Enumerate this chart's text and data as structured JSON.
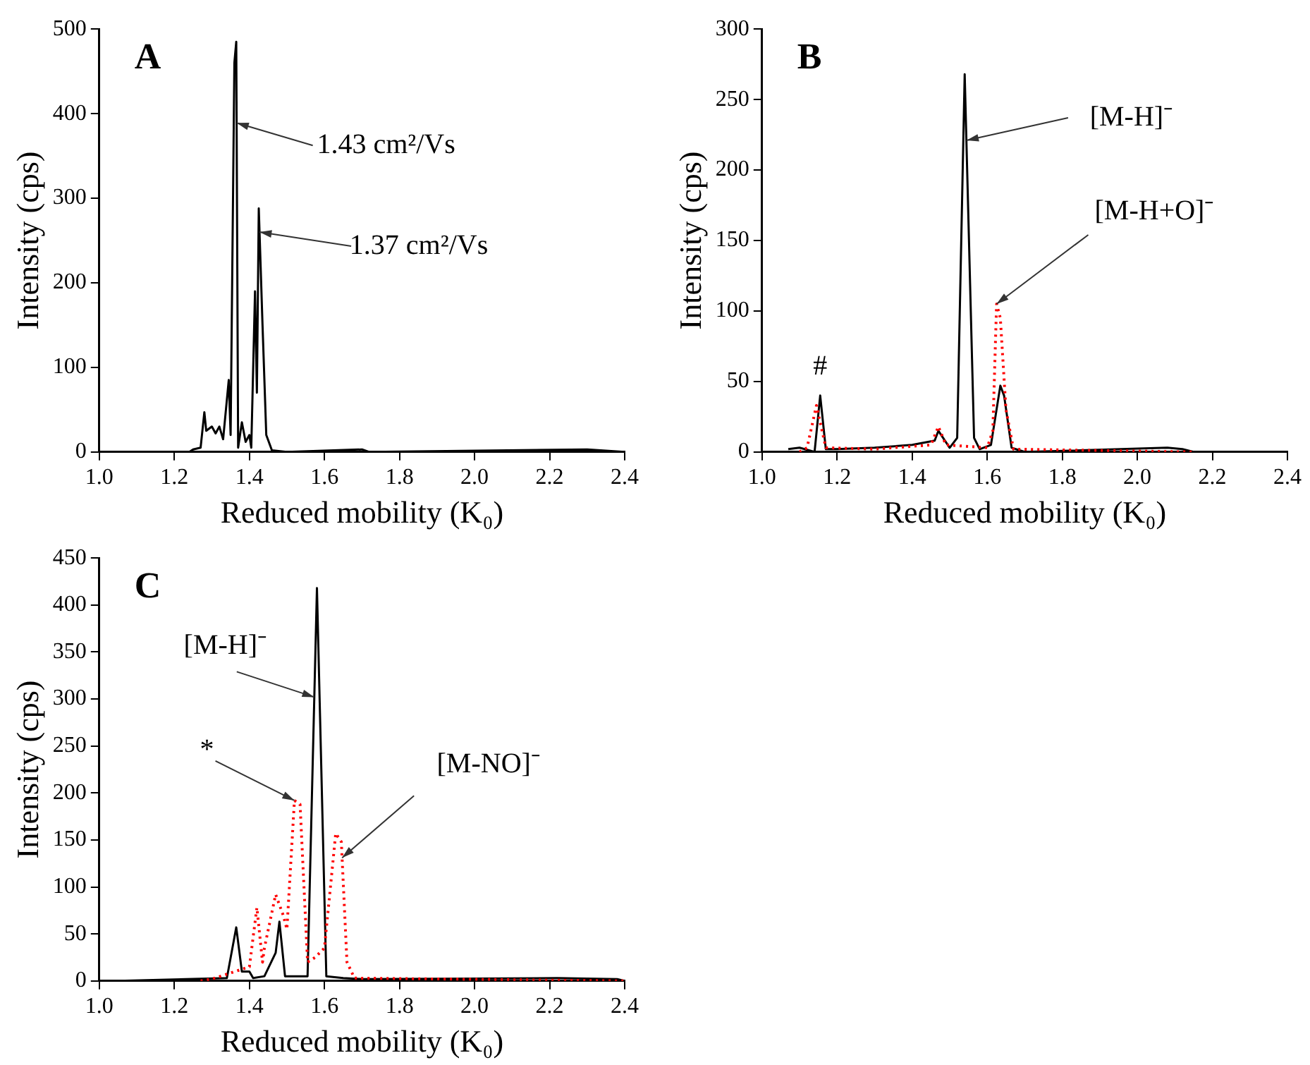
{
  "chart_data": [
    {
      "type": "line",
      "title": "A",
      "xlabel": "Reduced mobility (K₀)",
      "ylabel": "Intensity (cps)",
      "xlim": [
        1.0,
        2.4
      ],
      "xticks": [
        {
          "value": 1.0,
          "label": "1.0"
        },
        {
          "value": 1.2,
          "label": "1.2"
        },
        {
          "value": 1.4,
          "label": "1.4"
        },
        {
          "value": 1.6,
          "label": "1.6"
        },
        {
          "value": 1.8,
          "label": "1.8"
        },
        {
          "value": 2.0,
          "label": "2.0"
        },
        {
          "value": 2.2,
          "label": "2.2"
        },
        {
          "value": 2.4,
          "label": "2.4"
        }
      ],
      "ylim": [
        0,
        500
      ],
      "yticks": [
        0,
        100,
        200,
        300,
        400,
        500
      ],
      "grid": false,
      "legend": false,
      "marker": "none",
      "series": [
        {
          "color": "#000000",
          "line_style": "solid",
          "x": [
            1.0,
            1.24,
            1.25,
            1.27,
            1.28,
            1.285,
            1.3,
            1.31,
            1.32,
            1.33,
            1.345,
            1.35,
            1.36,
            1.365,
            1.37,
            1.38,
            1.39,
            1.4,
            1.405,
            1.415,
            1.42,
            1.425,
            1.435,
            1.445,
            1.46,
            1.5,
            1.7,
            1.72,
            2.3,
            2.4
          ],
          "values": [
            0,
            0,
            3,
            5,
            47,
            25,
            30,
            22,
            30,
            15,
            85,
            20,
            460,
            485,
            5,
            35,
            12,
            20,
            5,
            190,
            70,
            288,
            150,
            20,
            2,
            0,
            3,
            0,
            3,
            0
          ]
        }
      ],
      "annotations": [
        {
          "text": "1.43 cm²/Vs",
          "x": 1.366,
          "y": 389
        },
        {
          "text": "1.37 cm²/Vs",
          "x": 1.427,
          "y": 260
        }
      ]
    },
    {
      "type": "line",
      "title": "B",
      "xlabel": "Reduced mobility (K₀)",
      "ylabel": "Intensity (cps)",
      "xlim": [
        1.0,
        2.4
      ],
      "xticks": [
        {
          "value": 1.0,
          "label": "1.0"
        },
        {
          "value": 1.2,
          "label": "1.2"
        },
        {
          "value": 1.4,
          "label": "1.4"
        },
        {
          "value": 1.6,
          "label": "1.6"
        },
        {
          "value": 1.8,
          "label": "1.8"
        },
        {
          "value": 2.0,
          "label": "2.0"
        },
        {
          "value": 2.2,
          "label": "2.2"
        },
        {
          "value": 2.4,
          "label": "2.4"
        }
      ],
      "ylim": [
        0,
        300
      ],
      "yticks": [
        0,
        50,
        100,
        150,
        200,
        250,
        300
      ],
      "grid": false,
      "legend": false,
      "marker": "none",
      "series": [
        {
          "color": "#ff0000",
          "line_style": "dotted",
          "x": [
            1.1,
            1.12,
            1.145,
            1.16,
            1.17,
            1.3,
            1.45,
            1.47,
            1.49,
            1.6,
            1.615,
            1.625,
            1.635,
            1.65,
            1.67,
            2.15
          ],
          "values": [
            0,
            3,
            33,
            15,
            3,
            2,
            5,
            18,
            5,
            3,
            15,
            105,
            95,
            30,
            2,
            0
          ]
        },
        {
          "color": "#000000",
          "line_style": "solid",
          "x": [
            1.07,
            1.1,
            1.14,
            1.155,
            1.17,
            1.2,
            1.3,
            1.4,
            1.46,
            1.47,
            1.5,
            1.52,
            1.54,
            1.565,
            1.58,
            1.61,
            1.635,
            1.645,
            1.665,
            1.7,
            2.08,
            2.12,
            2.15
          ],
          "values": [
            2,
            3,
            0,
            40,
            2,
            2,
            3,
            5,
            8,
            15,
            3,
            10,
            268,
            10,
            2,
            5,
            47,
            40,
            3,
            0,
            3,
            2,
            0
          ]
        }
      ],
      "annotations": [
        {
          "text": "[M-H]⁻",
          "x": 1.545,
          "y": 221
        },
        {
          "text": "[M-H+O]⁻",
          "x": 1.625,
          "y": 105
        },
        {
          "text": "#",
          "x": 1.155,
          "y": 40
        }
      ]
    },
    {
      "type": "line",
      "title": "C",
      "xlabel": "Reduced mobility (K₀)",
      "ylabel": "Intensity (cps)",
      "xlim": [
        1.0,
        2.4
      ],
      "xticks": [
        {
          "value": 1.0,
          "label": "1.0"
        },
        {
          "value": 1.2,
          "label": "1.2"
        },
        {
          "value": 1.4,
          "label": "1.4"
        },
        {
          "value": 1.6,
          "label": "1.6"
        },
        {
          "value": 1.8,
          "label": "1.8"
        },
        {
          "value": 2.0,
          "label": "2.0"
        },
        {
          "value": 2.2,
          "label": "2.2"
        },
        {
          "value": 2.4,
          "label": "2.4"
        }
      ],
      "ylim": [
        0,
        450
      ],
      "yticks": [
        0,
        50,
        100,
        150,
        200,
        250,
        300,
        350,
        400,
        450
      ],
      "grid": false,
      "legend": false,
      "marker": "none",
      "series": [
        {
          "color": "#ff0000",
          "line_style": "dotted",
          "x": [
            1.27,
            1.3,
            1.4,
            1.42,
            1.435,
            1.44,
            1.47,
            1.49,
            1.5,
            1.52,
            1.535,
            1.555,
            1.575,
            1.6,
            1.63,
            1.645,
            1.66,
            1.68,
            2.4
          ],
          "values": [
            0,
            2,
            15,
            78,
            20,
            35,
            92,
            70,
            55,
            192,
            188,
            20,
            25,
            35,
            157,
            148,
            20,
            3,
            0
          ]
        },
        {
          "color": "#000000",
          "line_style": "solid",
          "x": [
            1.05,
            1.34,
            1.365,
            1.38,
            1.4,
            1.41,
            1.44,
            1.47,
            1.48,
            1.495,
            1.53,
            1.555,
            1.58,
            1.605,
            1.65,
            1.7,
            2.22,
            2.38,
            2.4
          ],
          "values": [
            0,
            3,
            57,
            10,
            10,
            3,
            5,
            30,
            63,
            5,
            5,
            5,
            418,
            5,
            3,
            2,
            3,
            2,
            0
          ]
        }
      ],
      "annotations": [
        {
          "text": "[M-H]⁻",
          "x": 1.573,
          "y": 302
        },
        {
          "text": "*",
          "x": 1.52,
          "y": 192
        },
        {
          "text": "[M-NO]⁻",
          "x": 1.647,
          "y": 131
        }
      ]
    }
  ]
}
